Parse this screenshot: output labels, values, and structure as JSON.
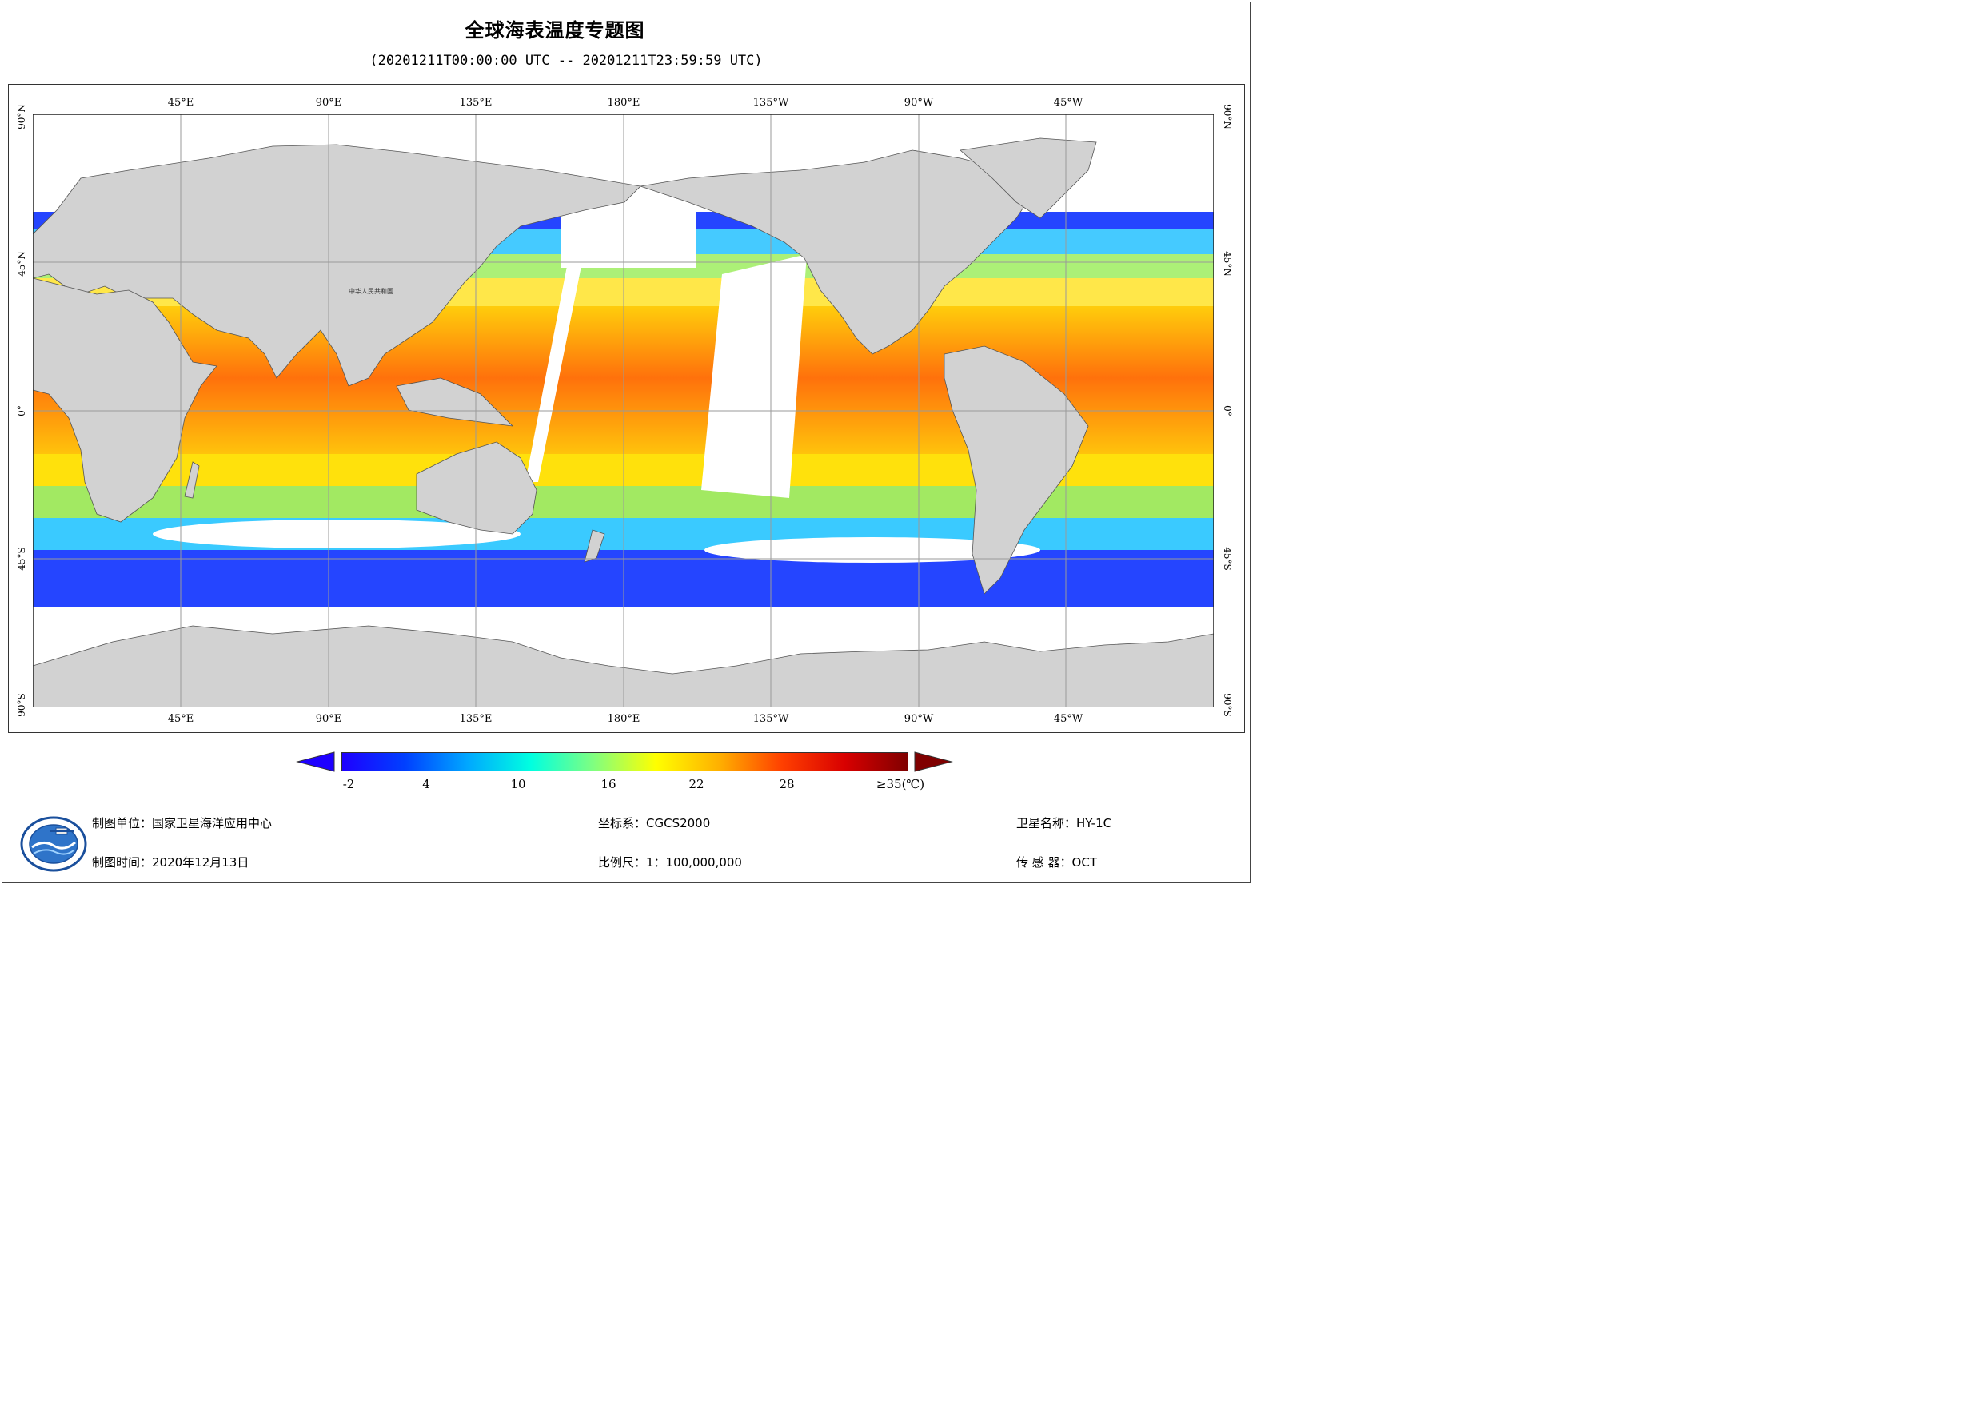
{
  "title": "全球海表温度专题图",
  "subtitle": "(20201211T00:00:00 UTC -- 20201211T23:59:59 UTC)",
  "map": {
    "country_label": "中华人民共和国",
    "lon_labels": [
      "45°E",
      "90°E",
      "135°E",
      "180°E",
      "135°W",
      "90°W",
      "45°W"
    ],
    "lat_labels": [
      "90°N",
      "45°N",
      "0°",
      "45°S",
      "90°S"
    ],
    "colors": {
      "land": "#d2d2d2",
      "ocean_nodata": "#ffffff",
      "grid": "#9a9a9a"
    }
  },
  "legend": {
    "ticks": [
      "-2",
      "4",
      "10",
      "16",
      "22",
      "28",
      "≥35(℃)"
    ],
    "colors": [
      "#1e00ff",
      "#0040ff",
      "#00a8ff",
      "#00ffe0",
      "#80ff80",
      "#ffff00",
      "#ffb000",
      "#ff4000",
      "#d80000",
      "#800000"
    ]
  },
  "footer": {
    "unit": "制图单位：国家卫星海洋应用中心",
    "date": "制图时间：2020年12月13日",
    "crs": "坐标系：CGCS2000",
    "scale": "比例尺：1：100,000,000",
    "satellite": "卫星名称：HY-1C",
    "sensor": "传 感 器：OCT",
    "logo_icon": "nsoas-logo-icon"
  }
}
